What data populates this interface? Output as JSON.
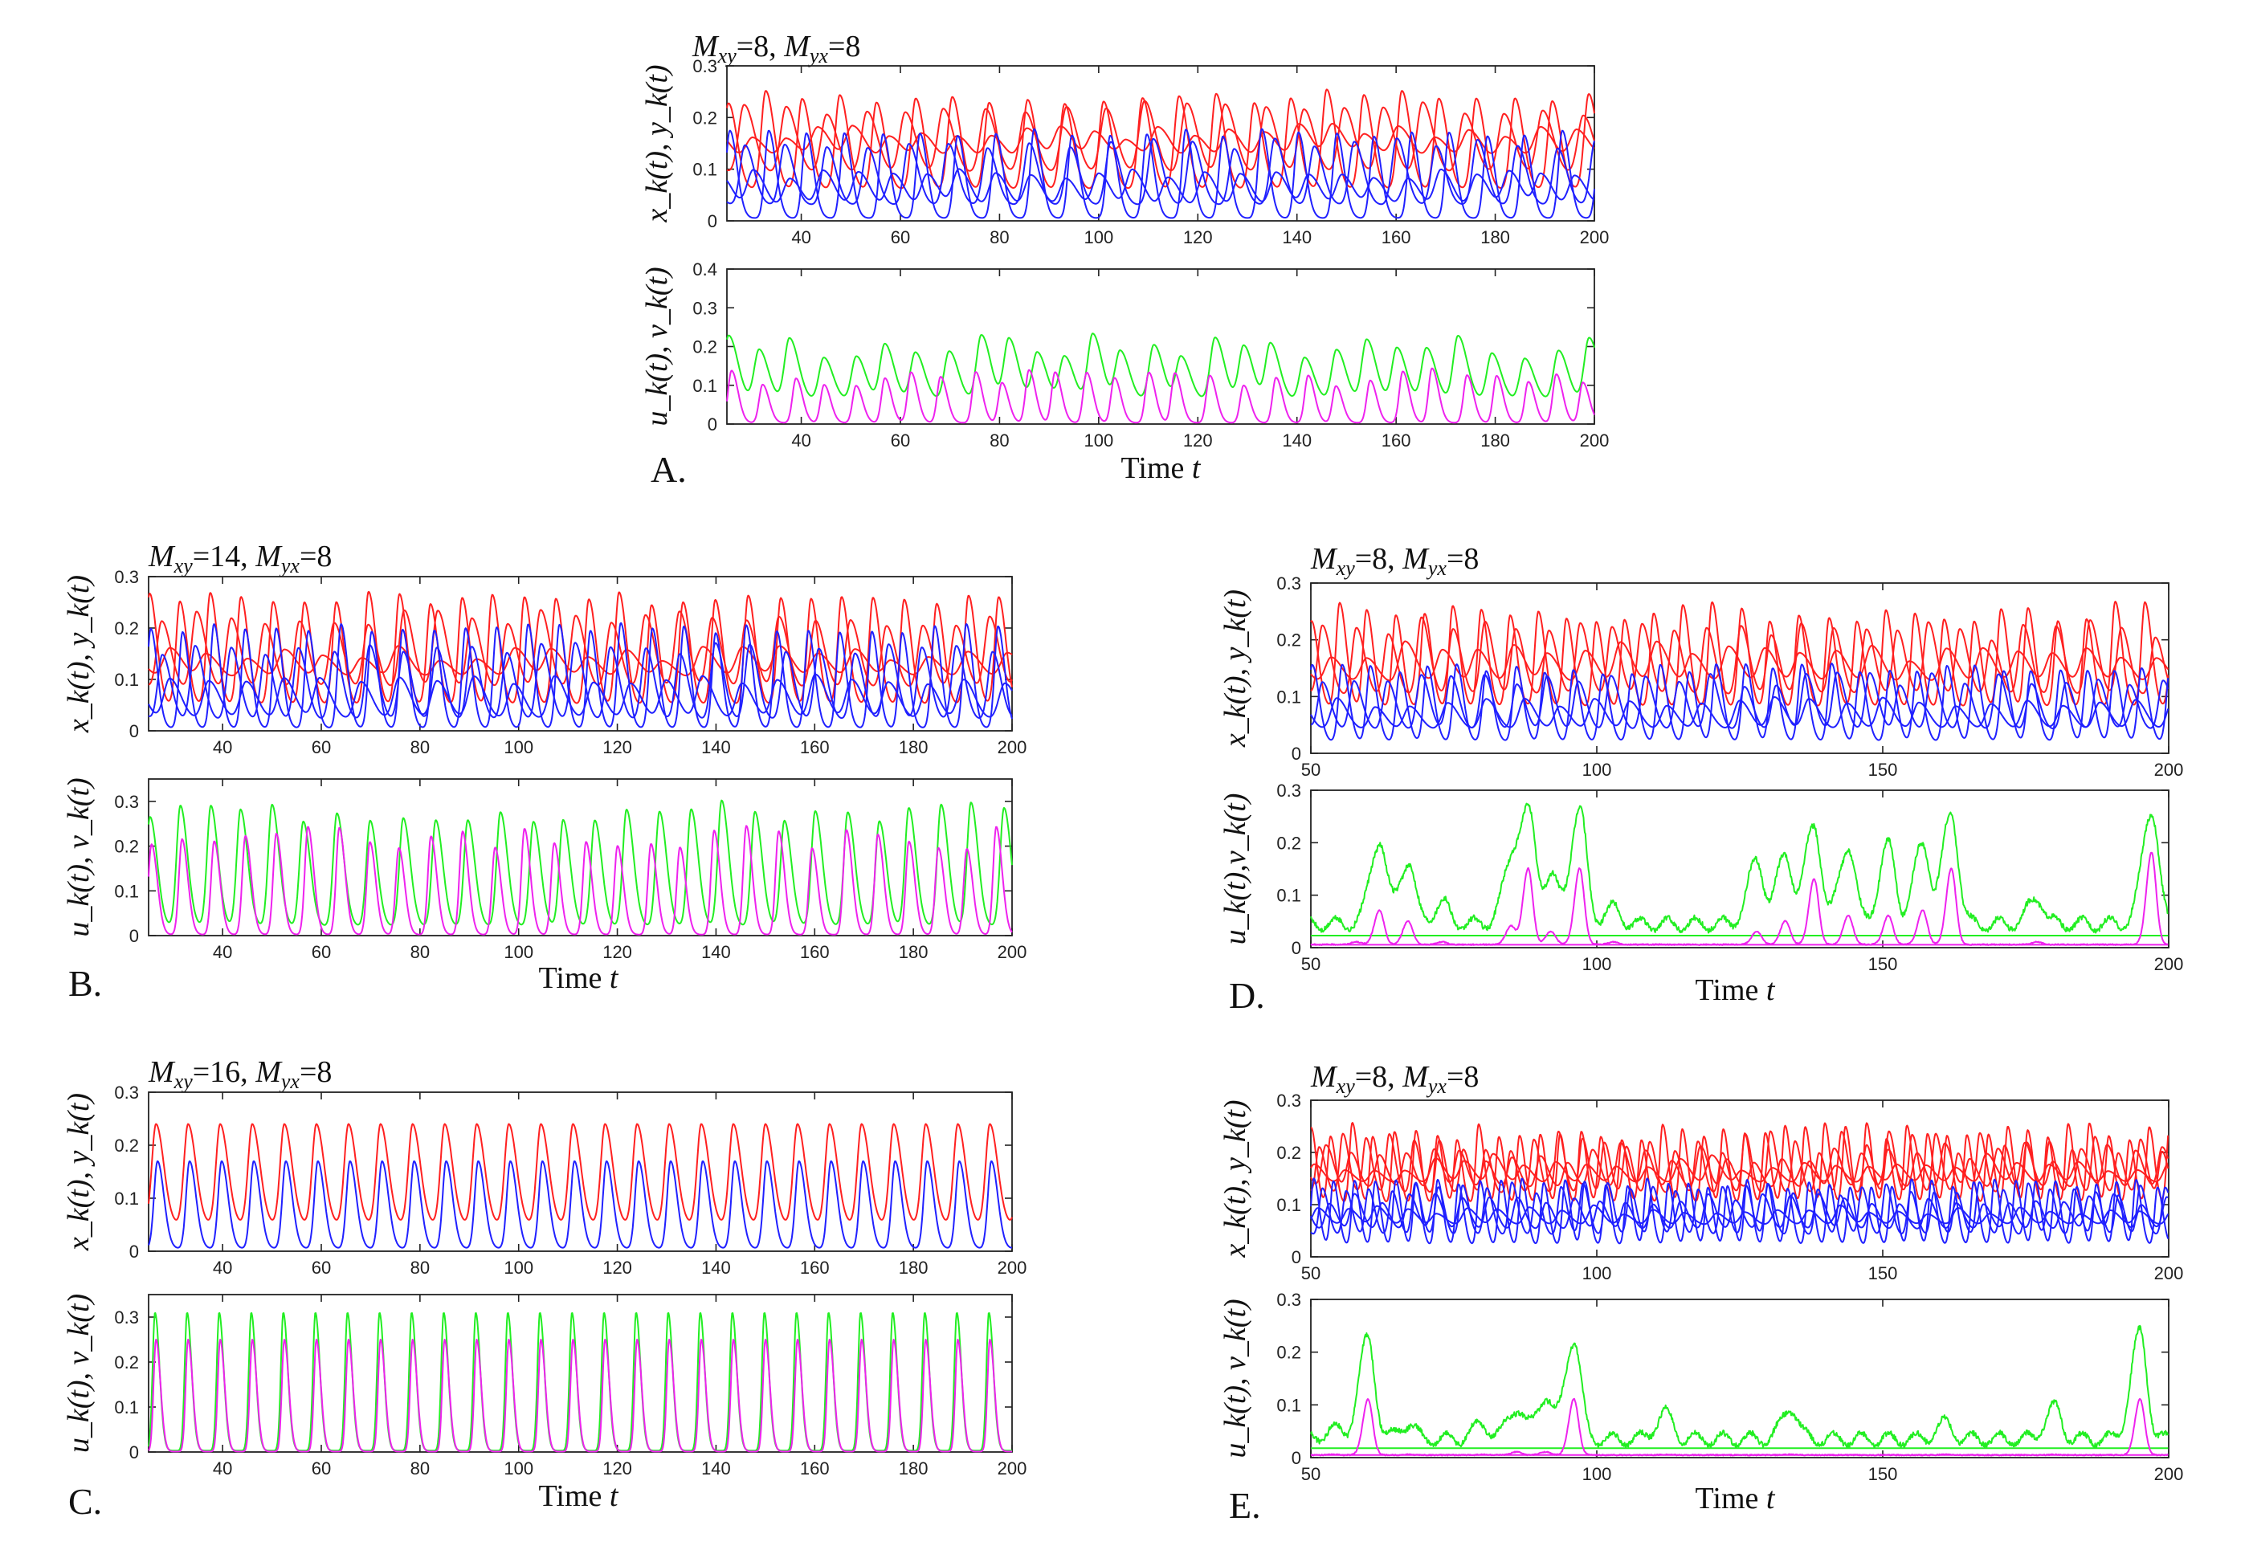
{
  "colors": {
    "x": "#ff2020",
    "y": "#2020ff",
    "u": "#22ee22",
    "v": "#ee22ee"
  },
  "chart_data": [
    {
      "id": "A",
      "type": "line",
      "letter": "A.",
      "title": "M_xy=8, M_yx=8",
      "title_mxy": "8",
      "title_myx": "8",
      "top": {
        "ylabel": "x_k(t), y_k(t)",
        "xlim": [
          25,
          200
        ],
        "ylim": [
          0,
          0.3
        ],
        "xticks": [
          40,
          60,
          80,
          100,
          120,
          140,
          160,
          180,
          200
        ],
        "yticks": [
          0,
          0.1,
          0.2,
          0.3
        ],
        "series": [
          {
            "name": "x_k",
            "color_key": "x",
            "period": 7.6,
            "phase": 0.0,
            "peak": 0.24,
            "base": 0.06,
            "width": 1.3,
            "jitter": 0.12
          },
          {
            "name": "x_k",
            "color_key": "x",
            "period": 8.1,
            "phase": 3.2,
            "peak": 0.22,
            "base": 0.09,
            "width": 1.6,
            "jitter": 0.15
          },
          {
            "name": "x_k",
            "color_key": "x",
            "period": 6.9,
            "phase": 5.1,
            "peak": 0.17,
            "base": 0.11,
            "width": 2.0,
            "jitter": 0.2
          },
          {
            "name": "y_k",
            "color_key": "y",
            "period": 7.6,
            "phase": 0.6,
            "peak": 0.17,
            "base": 0.005,
            "width": 1.1,
            "jitter": 0.1
          },
          {
            "name": "y_k",
            "color_key": "y",
            "period": 8.1,
            "phase": 3.8,
            "peak": 0.15,
            "base": 0.03,
            "width": 1.4,
            "jitter": 0.15
          },
          {
            "name": "y_k",
            "color_key": "y",
            "period": 6.9,
            "phase": 5.7,
            "peak": 0.09,
            "base": 0.02,
            "width": 1.8,
            "jitter": 0.2
          }
        ]
      },
      "bottom": {
        "ylabel": "u_k(t), v_k(t)",
        "xlim": [
          25,
          200
        ],
        "ylim": [
          0,
          0.4
        ],
        "xticks": [
          40,
          60,
          80,
          100,
          120,
          140,
          160,
          180,
          200
        ],
        "yticks": [
          0,
          0.1,
          0.2,
          0.3,
          0.4
        ],
        "series": [
          {
            "name": "u_k",
            "color_key": "u",
            "period": 6.2,
            "phase": 1.0,
            "peak": 0.2,
            "base": 0.06,
            "width": 1.4,
            "jitter": 0.35
          },
          {
            "name": "v_k",
            "color_key": "v",
            "period": 6.2,
            "phase": 1.3,
            "peak": 0.12,
            "base": 0.003,
            "width": 1.0,
            "jitter": 0.4
          }
        ]
      },
      "xlabel": "Time t"
    },
    {
      "id": "B",
      "type": "line",
      "letter": "B.",
      "title": "M_xy=14, M_yx=8",
      "title_mxy": "14",
      "title_myx": "8",
      "top": {
        "ylabel": "x_k(t), y_k(t)",
        "xlim": [
          25,
          200
        ],
        "ylim": [
          0,
          0.3
        ],
        "xticks": [
          40,
          60,
          80,
          100,
          120,
          140,
          160,
          180,
          200
        ],
        "yticks": [
          0,
          0.1,
          0.2,
          0.3
        ],
        "series": [
          {
            "name": "x_k",
            "color_key": "x",
            "period": 6.4,
            "phase": 0.0,
            "peak": 0.26,
            "base": 0.05,
            "width": 1.1,
            "jitter": 0.12
          },
          {
            "name": "x_k",
            "color_key": "x",
            "period": 7.0,
            "phase": 2.5,
            "peak": 0.22,
            "base": 0.08,
            "width": 1.4,
            "jitter": 0.15
          },
          {
            "name": "x_k",
            "color_key": "x",
            "period": 7.8,
            "phase": 4.3,
            "peak": 0.15,
            "base": 0.1,
            "width": 1.9,
            "jitter": 0.2
          },
          {
            "name": "y_k",
            "color_key": "y",
            "period": 6.4,
            "phase": 0.5,
            "peak": 0.2,
            "base": 0.005,
            "width": 1.0,
            "jitter": 0.1
          },
          {
            "name": "y_k",
            "color_key": "y",
            "period": 7.0,
            "phase": 3.0,
            "peak": 0.16,
            "base": 0.02,
            "width": 1.3,
            "jitter": 0.15
          },
          {
            "name": "y_k",
            "color_key": "y",
            "period": 7.8,
            "phase": 4.8,
            "peak": 0.1,
            "base": 0.02,
            "width": 1.7,
            "jitter": 0.2
          }
        ]
      },
      "bottom": {
        "ylabel": "u_k(t), v_k(t)",
        "xlim": [
          25,
          200
        ],
        "ylim": [
          0,
          0.35
        ],
        "xticks": [
          40,
          60,
          80,
          100,
          120,
          140,
          160,
          180,
          200
        ],
        "yticks": [
          0,
          0.1,
          0.2,
          0.3
        ],
        "series": [
          {
            "name": "u_k",
            "color_key": "u",
            "period": 6.4,
            "phase": 0.8,
            "peak": 0.28,
            "base": 0.02,
            "width": 1.1,
            "jitter": 0.2
          },
          {
            "name": "v_k",
            "color_key": "v",
            "period": 6.4,
            "phase": 1.0,
            "peak": 0.22,
            "base": 0.002,
            "width": 0.9,
            "jitter": 0.25
          }
        ]
      },
      "xlabel": "Time t"
    },
    {
      "id": "C",
      "type": "line",
      "letter": "C.",
      "title": "M_xy=16, M_yx=8",
      "title_mxy": "16",
      "title_myx": "8",
      "top": {
        "ylabel": "x_k(t), y_k(t)",
        "xlim": [
          25,
          200
        ],
        "ylim": [
          0,
          0.3
        ],
        "xticks": [
          40,
          60,
          80,
          100,
          120,
          140,
          160,
          180,
          200
        ],
        "yticks": [
          0,
          0.1,
          0.2,
          0.3
        ],
        "series": [
          {
            "name": "x_k",
            "color_key": "x",
            "period": 6.5,
            "phase": 1.5,
            "peak": 0.24,
            "base": 0.05,
            "width": 1.2,
            "jitter": 0.0
          },
          {
            "name": "y_k",
            "color_key": "y",
            "period": 6.5,
            "phase": 1.8,
            "peak": 0.17,
            "base": 0.005,
            "width": 1.0,
            "jitter": 0.0
          }
        ]
      },
      "bottom": {
        "ylabel": "u_k(t), v_k(t)",
        "xlim": [
          25,
          200
        ],
        "ylim": [
          0,
          0.35
        ],
        "xticks": [
          40,
          60,
          80,
          100,
          120,
          140,
          160,
          180,
          200
        ],
        "yticks": [
          0,
          0.1,
          0.2,
          0.3
        ],
        "series": [
          {
            "name": "u_k",
            "color_key": "u",
            "period": 6.5,
            "phase": 1.3,
            "peak": 0.31,
            "base": 0.003,
            "width": 0.7,
            "jitter": 0.0
          },
          {
            "name": "v_k",
            "color_key": "v",
            "period": 6.5,
            "phase": 1.5,
            "peak": 0.25,
            "base": 0.001,
            "width": 0.7,
            "jitter": 0.0
          }
        ]
      },
      "xlabel": "Time t"
    },
    {
      "id": "D",
      "type": "line",
      "letter": "D.",
      "title": "M_xy=8, M_yx=8",
      "title_mxy": "8",
      "title_myx": "8",
      "top": {
        "ylabel": "x_k(t), y_k(t)",
        "xlim": [
          50,
          200
        ],
        "ylim": [
          0,
          0.3
        ],
        "xticks": [
          50,
          100,
          150,
          200
        ],
        "yticks": [
          0,
          0.1,
          0.2,
          0.3
        ],
        "series": [
          {
            "name": "x_k",
            "color_key": "x",
            "period": 5.0,
            "phase": 0.0,
            "peak": 0.25,
            "base": 0.08,
            "width": 0.9,
            "jitter": 0.15
          },
          {
            "name": "x_k",
            "color_key": "x",
            "period": 5.6,
            "phase": 2.0,
            "peak": 0.22,
            "base": 0.1,
            "width": 1.1,
            "jitter": 0.2
          },
          {
            "name": "x_k",
            "color_key": "x",
            "period": 6.3,
            "phase": 3.7,
            "peak": 0.18,
            "base": 0.12,
            "width": 1.5,
            "jitter": 0.2
          },
          {
            "name": "y_k",
            "color_key": "y",
            "period": 5.0,
            "phase": 0.4,
            "peak": 0.15,
            "base": 0.02,
            "width": 0.9,
            "jitter": 0.15
          },
          {
            "name": "y_k",
            "color_key": "y",
            "period": 5.6,
            "phase": 2.4,
            "peak": 0.13,
            "base": 0.04,
            "width": 1.1,
            "jitter": 0.2
          },
          {
            "name": "y_k",
            "color_key": "y",
            "period": 6.3,
            "phase": 4.1,
            "peak": 0.09,
            "base": 0.04,
            "width": 1.4,
            "jitter": 0.2
          }
        ]
      },
      "bottom": {
        "ylabel": "u_k(t),v_k(t)",
        "xlim": [
          50,
          200
        ],
        "ylim": [
          0,
          0.3
        ],
        "xticks": [
          50,
          100,
          150,
          200
        ],
        "yticks": [
          0,
          0.1,
          0.2,
          0.3
        ],
        "spikes": [
          {
            "t": 58,
            "u": 0.04,
            "v": 0.01
          },
          {
            "t": 62,
            "u": 0.2,
            "v": 0.07
          },
          {
            "t": 67,
            "u": 0.16,
            "v": 0.05
          },
          {
            "t": 73,
            "u": 0.08,
            "v": 0.01
          },
          {
            "t": 85,
            "u": 0.14,
            "v": 0.04
          },
          {
            "t": 88,
            "u": 0.25,
            "v": 0.15
          },
          {
            "t": 92,
            "u": 0.13,
            "v": 0.03
          },
          {
            "t": 97,
            "u": 0.26,
            "v": 0.15
          },
          {
            "t": 103,
            "u": 0.07,
            "v": 0.01
          },
          {
            "t": 128,
            "u": 0.16,
            "v": 0.03
          },
          {
            "t": 133,
            "u": 0.17,
            "v": 0.05
          },
          {
            "t": 138,
            "u": 0.23,
            "v": 0.13
          },
          {
            "t": 144,
            "u": 0.19,
            "v": 0.06
          },
          {
            "t": 151,
            "u": 0.19,
            "v": 0.06
          },
          {
            "t": 157,
            "u": 0.19,
            "v": 0.07
          },
          {
            "t": 162,
            "u": 0.25,
            "v": 0.15
          },
          {
            "t": 177,
            "u": 0.09,
            "v": 0.01
          },
          {
            "t": 197,
            "u": 0.26,
            "v": 0.18
          }
        ],
        "floor": {
          "u": 0.04,
          "v": 0.005
        }
      },
      "xlabel": "Time t"
    },
    {
      "id": "E",
      "type": "line",
      "letter": "E.",
      "title": "M_xy=8, M_yx=8",
      "title_mxy": "8",
      "title_myx": "8",
      "top": {
        "ylabel": "x_k(t), y_k(t)",
        "xlim": [
          50,
          200
        ],
        "ylim": [
          0,
          0.3
        ],
        "xticks": [
          50,
          100,
          150,
          200
        ],
        "yticks": [
          0,
          0.1,
          0.2,
          0.3
        ],
        "series": [
          {
            "name": "x_k",
            "color_key": "x",
            "period": 3.6,
            "phase": 0.0,
            "peak": 0.24,
            "base": 0.1,
            "width": 0.7,
            "jitter": 0.15
          },
          {
            "name": "x_k",
            "color_key": "x",
            "period": 4.1,
            "phase": 1.5,
            "peak": 0.22,
            "base": 0.12,
            "width": 0.8,
            "jitter": 0.2
          },
          {
            "name": "x_k",
            "color_key": "x",
            "period": 4.7,
            "phase": 2.8,
            "peak": 0.2,
            "base": 0.13,
            "width": 1.0,
            "jitter": 0.2
          },
          {
            "name": "x_k",
            "color_key": "x",
            "period": 5.3,
            "phase": 0.9,
            "peak": 0.18,
            "base": 0.14,
            "width": 1.2,
            "jitter": 0.2
          },
          {
            "name": "y_k",
            "color_key": "y",
            "period": 3.6,
            "phase": 0.3,
            "peak": 0.14,
            "base": 0.02,
            "width": 0.7,
            "jitter": 0.15
          },
          {
            "name": "y_k",
            "color_key": "y",
            "period": 4.1,
            "phase": 1.8,
            "peak": 0.13,
            "base": 0.04,
            "width": 0.8,
            "jitter": 0.2
          },
          {
            "name": "y_k",
            "color_key": "y",
            "period": 4.7,
            "phase": 3.1,
            "peak": 0.11,
            "base": 0.05,
            "width": 1.0,
            "jitter": 0.2
          },
          {
            "name": "y_k",
            "color_key": "y",
            "period": 5.3,
            "phase": 1.2,
            "peak": 0.09,
            "base": 0.06,
            "width": 1.2,
            "jitter": 0.2
          }
        ]
      },
      "bottom": {
        "ylabel": "u_k(t), v_k(t)",
        "xlim": [
          50,
          200
        ],
        "ylim": [
          0,
          0.3
        ],
        "xticks": [
          50,
          100,
          150,
          200
        ],
        "yticks": [
          0,
          0.1,
          0.2,
          0.3
        ],
        "spikes": [
          {
            "t": 54,
            "u": 0.05,
            "v": 0.005
          },
          {
            "t": 60,
            "u": 0.22,
            "v": 0.11
          },
          {
            "t": 67,
            "u": 0.06,
            "v": 0.005
          },
          {
            "t": 80,
            "u": 0.06,
            "v": 0.005
          },
          {
            "t": 86,
            "u": 0.09,
            "v": 0.01
          },
          {
            "t": 91,
            "u": 0.11,
            "v": 0.01
          },
          {
            "t": 96,
            "u": 0.22,
            "v": 0.11
          },
          {
            "t": 112,
            "u": 0.08,
            "v": 0.005
          },
          {
            "t": 134,
            "u": 0.09,
            "v": 0.005
          },
          {
            "t": 161,
            "u": 0.06,
            "v": 0.005
          },
          {
            "t": 180,
            "u": 0.09,
            "v": 0.005
          },
          {
            "t": 195,
            "u": 0.23,
            "v": 0.11
          }
        ],
        "floor": {
          "u": 0.03,
          "v": 0.004
        }
      },
      "xlabel": "Time t"
    }
  ]
}
